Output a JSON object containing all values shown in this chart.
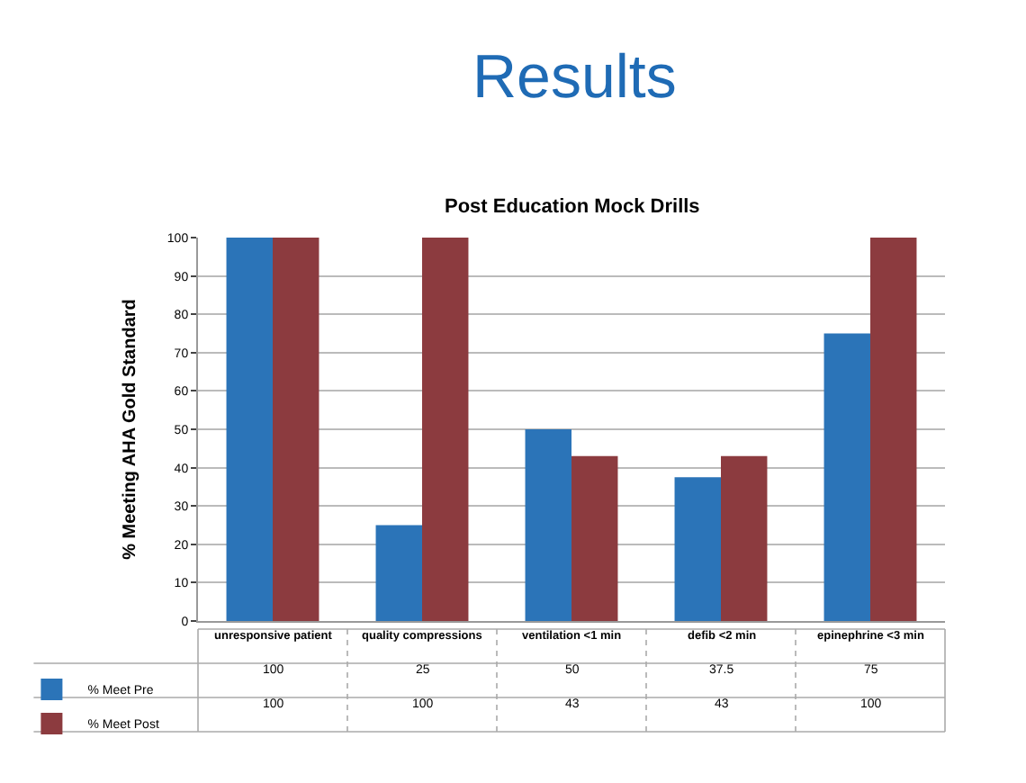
{
  "chart_data": {
    "type": "bar",
    "title": "Results",
    "subtitle": "Post Education Mock Drills",
    "ylabel": "% Meeting AHA Gold Standard",
    "categories": [
      "unresponsive patient",
      "quality compressions",
      "ventilation <1 min",
      "defib <2 min",
      "epinephrine <3 min"
    ],
    "series": [
      {
        "name": "% Meet Pre",
        "color": "#2b74b8",
        "values": [
          100,
          25,
          50,
          37.5,
          75
        ]
      },
      {
        "name": "% Meet Post",
        "color": "#8c3b3f",
        "values": [
          100,
          100,
          43,
          43,
          100
        ]
      }
    ],
    "ylim": [
      0,
      100
    ],
    "yticks": [
      0,
      10,
      20,
      30,
      40,
      50,
      60,
      70,
      80,
      90,
      100
    ],
    "grid": "y",
    "legend": "bottom left",
    "data_labels": true
  }
}
